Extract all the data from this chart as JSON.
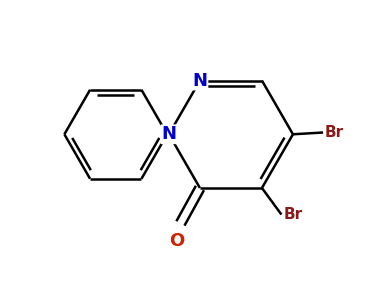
{
  "bg_color": "#ffffff",
  "bond_color": "#000000",
  "n_color": "#0000cd",
  "o_color": "#cc2200",
  "br_color": "#8b1a1a",
  "bond_width": 1.8,
  "figsize": [
    3.91,
    3.04
  ],
  "dpi": 100,
  "xlim": [
    0.0,
    1.0
  ],
  "ylim": [
    0.1,
    0.95
  ]
}
